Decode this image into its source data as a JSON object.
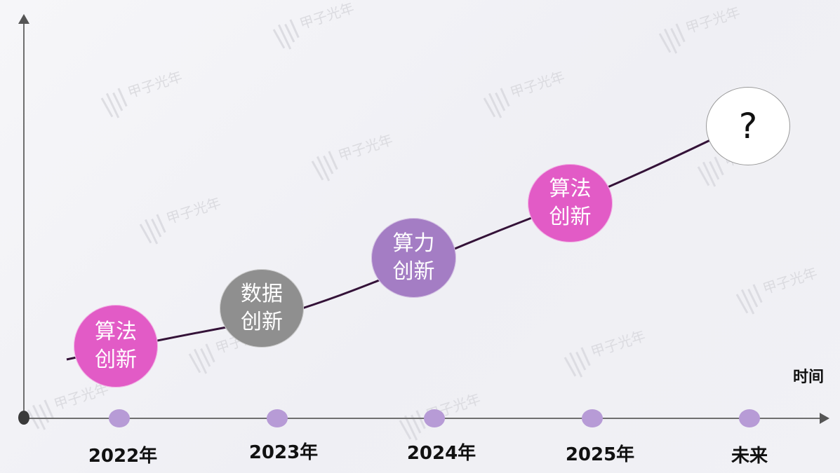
{
  "axis": {
    "x_label": "时间"
  },
  "timeline": [
    {
      "label": "2022年"
    },
    {
      "label": "2023年"
    },
    {
      "label": "2024年"
    },
    {
      "label": "2025年"
    },
    {
      "label": "未来"
    }
  ],
  "bubbles": [
    {
      "line1": "算法",
      "line2": "创新",
      "color": "#e25bc6"
    },
    {
      "line1": "数据",
      "line2": "创新",
      "color": "#8f8f8f"
    },
    {
      "line1": "算力",
      "line2": "创新",
      "color": "#a47dc4"
    },
    {
      "line1": "算法",
      "line2": "创新",
      "color": "#e25bc6"
    },
    {
      "text": "?"
    }
  ],
  "colors": {
    "curve": "#341238",
    "marker": "#b79bd6",
    "axis": "#6f6f6f",
    "origin": "#3a3a3a"
  },
  "watermark": {
    "brand": "甲子光年"
  }
}
